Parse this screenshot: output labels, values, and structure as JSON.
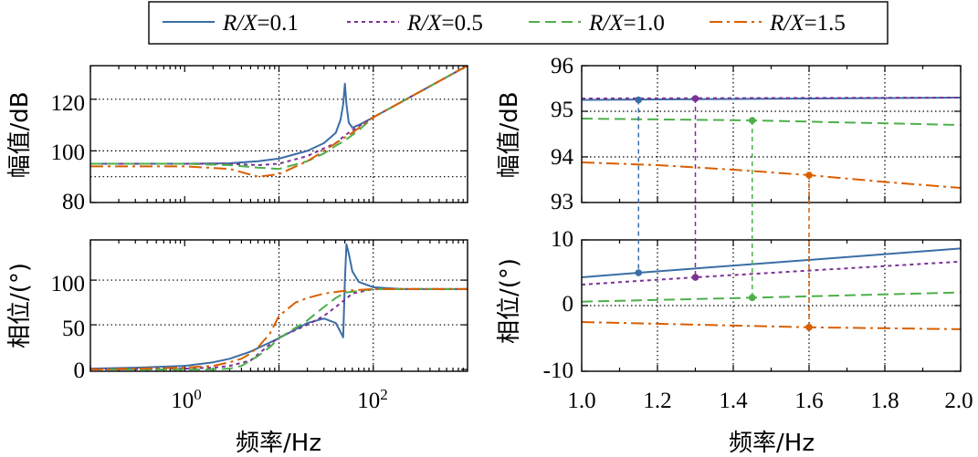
{
  "legend": [
    {
      "name": "R/X=0.1",
      "italic": "R/X",
      "rest": "=0.1",
      "color": "#3b6ea5",
      "dash": ""
    },
    {
      "name": "R/X=0.5",
      "italic": "R/X",
      "rest": "=0.5",
      "color": "#7b3294",
      "dash": "4 4"
    },
    {
      "name": "R/X=1.0",
      "italic": "R/X",
      "rest": "=1.0",
      "color": "#4daf4a",
      "dash": "12 6"
    },
    {
      "name": "R/X=1.5",
      "italic": "R/X",
      "rest": "=1.5",
      "color": "#d95f02",
      "dash": "14 5 3 5"
    }
  ],
  "chart_data": [
    {
      "id": "left-magnitude",
      "type": "line",
      "xscale": "log",
      "xlim": [
        0.1,
        1000
      ],
      "ylim": [
        80,
        133
      ],
      "ylabel": "幅值/dB",
      "yticks": [
        80,
        100,
        120
      ],
      "series": [
        {
          "name": "R/X=0.1",
          "x": [
            0.1,
            1,
            3,
            6,
            10,
            20,
            30,
            40,
            45,
            48,
            50,
            52,
            55,
            60,
            70,
            100,
            200,
            500,
            1000
          ],
          "y": [
            95,
            95,
            95.2,
            96,
            97,
            100,
            103,
            107,
            112,
            118,
            126,
            118,
            111,
            109,
            110,
            113,
            119,
            127,
            133
          ]
        },
        {
          "name": "R/X=0.5",
          "x": [
            0.1,
            1,
            3,
            6,
            10,
            20,
            30,
            40,
            50,
            60,
            100,
            200,
            500,
            1000
          ],
          "y": [
            95,
            95,
            95,
            94.5,
            95,
            98,
            101,
            103,
            106,
            108,
            113,
            119,
            127,
            133
          ]
        },
        {
          "name": "R/X=1.0",
          "x": [
            0.1,
            1,
            3,
            6,
            10,
            20,
            30,
            40,
            50,
            70,
            100,
            200,
            500,
            1000
          ],
          "y": [
            95,
            95,
            94.5,
            93.5,
            93,
            96,
            99,
            102,
            104,
            108,
            113,
            119,
            127,
            133
          ]
        },
        {
          "name": "R/X=1.5",
          "x": [
            0.1,
            0.5,
            1,
            3,
            6,
            10,
            20,
            30,
            40,
            60,
            100,
            200,
            500,
            1000
          ],
          "y": [
            94,
            94,
            94,
            93,
            90,
            91,
            96,
            100,
            103,
            107,
            113,
            119,
            127,
            133
          ]
        }
      ]
    },
    {
      "id": "left-phase",
      "type": "line",
      "xscale": "log",
      "xlim": [
        0.1,
        1000
      ],
      "ylim": [
        -2,
        145
      ],
      "xlabel": "频率/Hz",
      "ylabel": "相位/(°)",
      "yticks": [
        0,
        50,
        100
      ],
      "xtick_labels": [
        "10^0",
        "10^2"
      ],
      "series": [
        {
          "name": "R/X=0.1",
          "x": [
            0.1,
            0.3,
            1,
            2,
            3,
            5,
            10,
            20,
            30,
            40,
            45,
            48,
            50,
            52,
            55,
            60,
            70,
            100,
            200,
            1000
          ],
          "y": [
            1,
            2,
            4,
            8,
            12,
            20,
            35,
            52,
            57,
            52,
            42,
            36,
            100,
            140,
            130,
            110,
            98,
            92,
            90,
            90
          ]
        },
        {
          "name": "R/X=0.5",
          "x": [
            0.1,
            0.5,
            1,
            2,
            3,
            5,
            8,
            10,
            20,
            30,
            40,
            50,
            60,
            100,
            1000
          ],
          "y": [
            0,
            0.5,
            1,
            2,
            4,
            10,
            28,
            36,
            50,
            60,
            70,
            78,
            85,
            90,
            90
          ]
        },
        {
          "name": "R/X=1.0",
          "x": [
            0.1,
            1,
            2,
            3,
            4,
            5,
            6,
            8,
            10,
            20,
            30,
            40,
            50,
            100,
            1000
          ],
          "y": [
            0,
            0,
            0,
            1,
            4,
            10,
            15,
            25,
            35,
            55,
            70,
            80,
            86,
            90,
            90
          ]
        },
        {
          "name": "R/X=1.5",
          "x": [
            0.1,
            1,
            2,
            3,
            4,
            5,
            6,
            8,
            10,
            15,
            20,
            30,
            50,
            100,
            1000
          ],
          "y": [
            0,
            2,
            4,
            8,
            12,
            18,
            25,
            40,
            60,
            75,
            80,
            85,
            88,
            90,
            90
          ]
        }
      ]
    },
    {
      "id": "right-magnitude",
      "type": "line",
      "xlim": [
        1.0,
        2.0
      ],
      "ylim": [
        93,
        96
      ],
      "ylabel": "幅值/dB",
      "yticks": [
        93,
        94,
        95,
        96
      ],
      "series": [
        {
          "name": "R/X=0.1",
          "x": [
            1.0,
            2.0
          ],
          "y": [
            95.25,
            95.3
          ]
        },
        {
          "name": "R/X=0.5",
          "x": [
            1.0,
            2.0
          ],
          "y": [
            95.28,
            95.3
          ]
        },
        {
          "name": "R/X=1.0",
          "x": [
            1.0,
            1.45,
            2.0
          ],
          "y": [
            94.84,
            94.8,
            94.7
          ]
        },
        {
          "name": "R/X=1.5",
          "x": [
            1.0,
            1.2,
            1.4,
            1.6,
            1.8,
            2.0
          ],
          "y": [
            93.88,
            93.82,
            93.72,
            93.6,
            93.45,
            93.32
          ]
        }
      ],
      "markers": [
        {
          "series": "R/X=0.1",
          "x": 1.15,
          "y": 95.25
        },
        {
          "series": "R/X=0.5",
          "x": 1.3,
          "y": 95.28
        },
        {
          "series": "R/X=1.0",
          "x": 1.45,
          "y": 94.8
        },
        {
          "series": "R/X=1.5",
          "x": 1.6,
          "y": 93.6
        }
      ]
    },
    {
      "id": "right-phase",
      "type": "line",
      "xlim": [
        1.0,
        2.0
      ],
      "ylim": [
        -10,
        10
      ],
      "xlabel": "频率/Hz",
      "ylabel": "相位/(°)",
      "yticks": [
        -10,
        0,
        10
      ],
      "xticks": [
        1.0,
        1.2,
        1.4,
        1.6,
        1.8,
        2.0
      ],
      "xtick_labels": [
        "1.0",
        "1.2",
        "1.4",
        "1.6",
        "1.8",
        "2.0"
      ],
      "series": [
        {
          "name": "R/X=0.1",
          "x": [
            1.0,
            1.15,
            2.0
          ],
          "y": [
            4.3,
            5.0,
            8.7
          ]
        },
        {
          "name": "R/X=0.5",
          "x": [
            1.0,
            1.3,
            2.0
          ],
          "y": [
            3.2,
            4.3,
            6.7
          ]
        },
        {
          "name": "R/X=1.0",
          "x": [
            1.0,
            1.45,
            2.0
          ],
          "y": [
            0.6,
            1.2,
            2.0
          ]
        },
        {
          "name": "R/X=1.5",
          "x": [
            1.0,
            1.6,
            2.0
          ],
          "y": [
            -2.5,
            -3.3,
            -3.6
          ]
        }
      ],
      "markers": [
        {
          "series": "R/X=0.1",
          "x": 1.15,
          "y": 5.0
        },
        {
          "series": "R/X=0.5",
          "x": 1.3,
          "y": 4.3
        },
        {
          "series": "R/X=1.0",
          "x": 1.45,
          "y": 1.2
        },
        {
          "series": "R/X=1.5",
          "x": 1.6,
          "y": -3.3
        }
      ]
    }
  ]
}
